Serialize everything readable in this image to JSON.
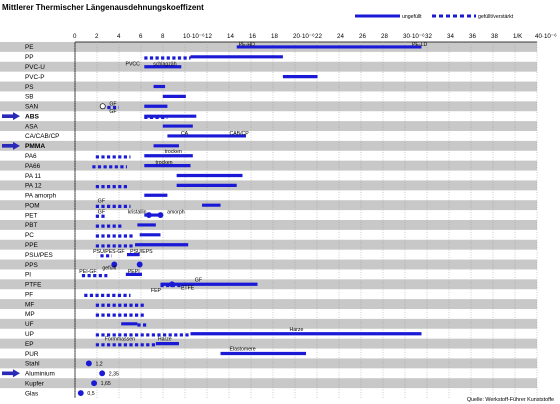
{
  "chart_data": {
    "type": "bar",
    "title": "Mittlerer Thermischer Längenausdehnungskoeffizent",
    "source": "Quelle: Werkstoff-Führer Kunststoffe",
    "legend": {
      "placement": "top-right",
      "items": [
        {
          "label": "ungefüllt",
          "style": "solid"
        },
        {
          "label": "gefüllt/verstärkt",
          "style": "dashed"
        }
      ]
    },
    "x_ticks": [
      "0",
      "2",
      "4",
      "6",
      "8",
      "10·10⁻⁶",
      "12",
      "14",
      "16",
      "18",
      "20·10⁻⁶",
      "22",
      "24",
      "26",
      "28",
      "30·10⁻⁶",
      "32",
      "34",
      "36",
      "38",
      "1/K",
      "40·10⁻⁶"
    ],
    "xlim": [
      0,
      40
    ],
    "bar_color": "#1a1ad6",
    "marker_color": "#1a1ad6",
    "band_color": "#c8c8c8",
    "arrow_color": "#2a2ab8",
    "categories": [
      "PE",
      "PP",
      "PVC-U",
      "PVC-P",
      "PS",
      "SB",
      "SAN",
      "ABS",
      "ASA",
      "CA/CAB/CP",
      "PMMA",
      "PA6",
      "PA66",
      "PA 11",
      "PA 12",
      "PA amorph",
      "POM",
      "PET",
      "PBT",
      "PC",
      "PPE",
      "PSU/PES",
      "PPS",
      "PI",
      "PTFE",
      "PF",
      "MF",
      "MP",
      "UF",
      "UP",
      "EP",
      "PUR",
      "Stahl",
      "Aluminium",
      "Kupfer",
      "Glas"
    ],
    "highlighted": [
      "ABS",
      "PMMA",
      "Aluminium"
    ],
    "bold": [
      "ABS",
      "PMMA"
    ],
    "shaded": [
      "PE",
      "PVC-U",
      "PS",
      "SAN",
      "ASA",
      "PMMA",
      "PA66",
      "PA 12",
      "POM",
      "PBT",
      "PPE",
      "PPS",
      "PTFE",
      "MF",
      "UF",
      "EP",
      "Stahl",
      "Kupfer"
    ],
    "bars": [
      {
        "cat": "PE",
        "x0": 14,
        "x1": 30,
        "style": "solid"
      },
      {
        "cat": "PP",
        "x0": 6,
        "x1": 10,
        "style": "dashed"
      },
      {
        "cat": "PP",
        "x0": 10,
        "x1": 18,
        "style": "solid"
      },
      {
        "cat": "PVC-U",
        "x0": 6,
        "x1": 9.2,
        "style": "solid"
      },
      {
        "cat": "PVC-P",
        "x0": 18,
        "x1": 21,
        "style": "solid"
      },
      {
        "cat": "PS",
        "x0": 6.8,
        "x1": 7.8,
        "style": "solid"
      },
      {
        "cat": "SB",
        "x0": 7.6,
        "x1": 9.6,
        "style": "solid"
      },
      {
        "cat": "SAN",
        "x0": 6,
        "x1": 8,
        "style": "solid"
      },
      {
        "cat": "SAN",
        "x0": 2.8,
        "x1": 3.8,
        "style": "dashed"
      },
      {
        "cat": "ABS",
        "x0": 6,
        "x1": 10.5,
        "style": "solid"
      },
      {
        "cat": "ABS",
        "x0": 6,
        "x1": 8,
        "style": "dashed"
      },
      {
        "cat": "ASA",
        "x0": 7.6,
        "x1": 10.2,
        "style": "solid"
      },
      {
        "cat": "CA/CAB/CP",
        "x0": 8,
        "x1": 14.8,
        "style": "solid"
      },
      {
        "cat": "PMMA",
        "x0": 6.8,
        "x1": 9,
        "style": "solid"
      },
      {
        "cat": "PA6",
        "x0": 1.8,
        "x1": 4.8,
        "style": "dashed"
      },
      {
        "cat": "PA6",
        "x0": 6,
        "x1": 10.2,
        "style": "solid"
      },
      {
        "cat": "PA66",
        "x0": 1.5,
        "x1": 4.5,
        "style": "dashed"
      },
      {
        "cat": "PA66",
        "x0": 6,
        "x1": 10,
        "style": "solid"
      },
      {
        "cat": "PA 11",
        "x0": 8.8,
        "x1": 14.5,
        "style": "solid"
      },
      {
        "cat": "PA 12",
        "x0": 8.8,
        "x1": 14,
        "style": "solid"
      },
      {
        "cat": "PA 12",
        "x0": 1.8,
        "x1": 4.5,
        "style": "dashed"
      },
      {
        "cat": "PA amorph",
        "x0": 6,
        "x1": 8,
        "style": "solid"
      },
      {
        "cat": "POM",
        "x0": 1.8,
        "x1": 4.8,
        "style": "dashed"
      },
      {
        "cat": "POM",
        "x0": 11,
        "x1": 12.6,
        "style": "solid"
      },
      {
        "cat": "PET",
        "x0": 1.8,
        "x1": 2.6,
        "style": "dashed"
      },
      {
        "cat": "PET",
        "x0": 6,
        "x1": 7.4,
        "style": "solid"
      },
      {
        "cat": "PBT",
        "x0": 1.8,
        "x1": 4.2,
        "style": "dashed"
      },
      {
        "cat": "PBT",
        "x0": 5.4,
        "x1": 7,
        "style": "solid"
      },
      {
        "cat": "PC",
        "x0": 1.8,
        "x1": 5,
        "style": "dashed"
      },
      {
        "cat": "PC",
        "x0": 5.6,
        "x1": 7.4,
        "style": "solid"
      },
      {
        "cat": "PPE",
        "x0": 1.8,
        "x1": 5.2,
        "style": "dashed"
      },
      {
        "cat": "PPE",
        "x0": 5.2,
        "x1": 9.8,
        "style": "solid"
      },
      {
        "cat": "PSU/PES",
        "x0": 2.2,
        "x1": 3.2,
        "style": "dashed"
      },
      {
        "cat": "PSU/PES",
        "x0": 4.5,
        "x1": 5.6,
        "style": "solid"
      },
      {
        "cat": "PI",
        "x0": 0.6,
        "x1": 2.8,
        "style": "dashed"
      },
      {
        "cat": "PI",
        "x0": 4.4,
        "x1": 5.8,
        "style": "solid"
      },
      {
        "cat": "PTFE",
        "x0": 7.4,
        "x1": 9.4,
        "style": "dashed"
      },
      {
        "cat": "PTFE",
        "x0": 9.4,
        "x1": 15.8,
        "style": "solid"
      },
      {
        "cat": "PTFE",
        "x0": 7.4,
        "x1": 9.6,
        "style": "solid"
      },
      {
        "cat": "PF",
        "x0": 0.8,
        "x1": 4.8,
        "style": "dashed"
      },
      {
        "cat": "MF",
        "x0": 1.8,
        "x1": 6,
        "style": "dashed"
      },
      {
        "cat": "MP",
        "x0": 1.8,
        "x1": 6,
        "style": "dashed"
      },
      {
        "cat": "UF",
        "x0": 4,
        "x1": 5.4,
        "style": "solid"
      },
      {
        "cat": "UF",
        "x0": 5.4,
        "x1": 6.2,
        "style": "dashed"
      },
      {
        "cat": "UP",
        "x0": 1.8,
        "x1": 10,
        "style": "dashed"
      },
      {
        "cat": "UP",
        "x0": 10,
        "x1": 30,
        "style": "solid"
      },
      {
        "cat": "EP",
        "x0": 1.8,
        "x1": 7,
        "style": "dashed"
      },
      {
        "cat": "EP",
        "x0": 7,
        "x1": 9,
        "style": "solid"
      },
      {
        "cat": "PUR",
        "x0": 12.6,
        "x1": 20,
        "style": "solid"
      }
    ],
    "points": [
      {
        "cat": "SAN",
        "x": 2.4,
        "filled": false
      },
      {
        "cat": "PET",
        "x": 6.4,
        "filled": true
      },
      {
        "cat": "PET",
        "x": 7.4,
        "filled": true
      },
      {
        "cat": "PPS",
        "x": 3.4,
        "filled": true
      },
      {
        "cat": "PPS",
        "x": 5.6,
        "filled": true
      },
      {
        "cat": "PTFE",
        "x": 8.4,
        "filled": true
      },
      {
        "cat": "Stahl",
        "x": 1.2,
        "filled": true
      },
      {
        "cat": "Aluminium",
        "x": 2.35,
        "filled": true
      },
      {
        "cat": "Kupfer",
        "x": 1.65,
        "filled": true
      },
      {
        "cat": "Glas",
        "x": 0.5,
        "filled": true
      }
    ],
    "annotations": [
      {
        "cat": "PE",
        "x": 14,
        "row_offset": -0.3,
        "text": "PE-HD"
      },
      {
        "cat": "PE",
        "x": 29,
        "row_offset": -0.3,
        "text": "PE-LD"
      },
      {
        "cat": "PVC-U",
        "x": 4.2,
        "row_offset": -0.35,
        "text": "PVCC"
      },
      {
        "cat": "PVC-U",
        "x": 6.6,
        "row_offset": -0.35,
        "text": "schlagzäh"
      },
      {
        "cat": "SAN",
        "x": 2.8,
        "row_offset": -0.3,
        "text": "GF"
      },
      {
        "cat": "ABS",
        "x": 2.8,
        "row_offset": -0.5,
        "text": "GF"
      },
      {
        "cat": "CA/CAB/CP",
        "x": 9,
        "row_offset": -0.3,
        "text": "CA"
      },
      {
        "cat": "CA/CAB/CP",
        "x": 13.2,
        "row_offset": -0.3,
        "text": "CAB/CP"
      },
      {
        "cat": "PMMA",
        "x": 7.6,
        "row_offset": 0.5,
        "text": "trocken"
      },
      {
        "cat": "PA66",
        "x": 6.8,
        "row_offset": -0.35,
        "text": "trocken"
      },
      {
        "cat": "POM",
        "x": 1.8,
        "row_offset": -0.45,
        "text": "GF"
      },
      {
        "cat": "PET",
        "x": 1.8,
        "row_offset": -0.35,
        "text": "GF"
      },
      {
        "cat": "PET",
        "x": 4.4,
        "row_offset": -0.35,
        "text": "kristallin"
      },
      {
        "cat": "PET",
        "x": 7.8,
        "row_offset": -0.35,
        "text": "amorph"
      },
      {
        "cat": "PSU/PES",
        "x": 1.4,
        "row_offset": -0.35,
        "text": "PSU/PES-GF"
      },
      {
        "cat": "PSU/PES",
        "x": 4.6,
        "row_offset": -0.35,
        "text": "PSU/EPS"
      },
      {
        "cat": "PPS",
        "x": 2.2,
        "row_offset": 0.3,
        "text": "gefüllt"
      },
      {
        "cat": "PI",
        "x": 0.2,
        "row_offset": -0.35,
        "text": "PEI-GF"
      },
      {
        "cat": "PI",
        "x": 4.4,
        "row_offset": -0.35,
        "text": "PEPI"
      },
      {
        "cat": "PTFE",
        "x": 10.2,
        "row_offset": -0.5,
        "text": "GF"
      },
      {
        "cat": "PTFE",
        "x": 6.4,
        "row_offset": 0.6,
        "text": "FEP"
      },
      {
        "cat": "PTFE",
        "x": 9,
        "row_offset": 0.35,
        "text": "ETFE"
      },
      {
        "cat": "UP",
        "x": 18.4,
        "row_offset": -0.5,
        "text": "Harze"
      },
      {
        "cat": "EP",
        "x": 2.4,
        "row_offset": -0.5,
        "text": "Formmassen"
      },
      {
        "cat": "EP",
        "x": 7,
        "row_offset": -0.5,
        "text": "Harze"
      },
      {
        "cat": "PUR",
        "x": 13.2,
        "row_offset": -0.5,
        "text": "Elastomere"
      },
      {
        "cat": "Stahl",
        "x": 1.6,
        "row_offset": 0,
        "text": "1,2"
      },
      {
        "cat": "Aluminium",
        "x": 2.75,
        "row_offset": 0,
        "text": "2,35"
      },
      {
        "cat": "Kupfer",
        "x": 2.05,
        "row_offset": 0,
        "text": "1,65"
      },
      {
        "cat": "Glas",
        "x": 0.9,
        "row_offset": 0,
        "text": "0,5"
      }
    ]
  }
}
